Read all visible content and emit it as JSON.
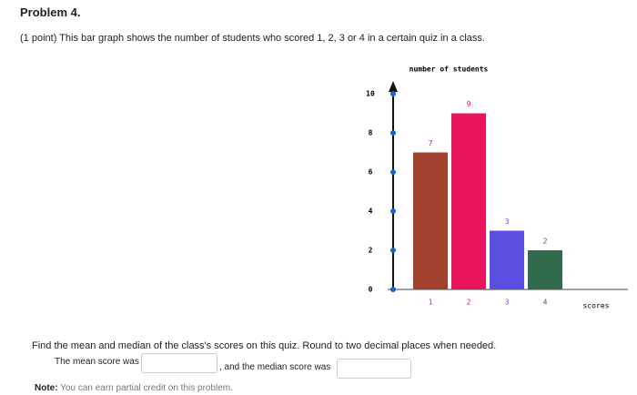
{
  "problem": {
    "title": "Problem 4.",
    "prompt": "(1 point) This bar graph shows the number of students who scored 1, 2, 3 or 4 in a certain quiz in a class.",
    "question": "Find the mean and median of the class's scores on this quiz. Round to two decimal places when needed.",
    "mean_label": "The mean score was",
    "median_label": ", and the median score was",
    "note_label": "Note:",
    "note_text": "You can earn partial credit on this problem."
  },
  "chart_data": {
    "type": "bar",
    "y_label": "number of students",
    "x_label": "scores",
    "categories": [
      "1",
      "2",
      "3",
      "4"
    ],
    "values": [
      7,
      9,
      3,
      2
    ],
    "colors": [
      "#a3412f",
      "#e8175d",
      "#5a4fe0",
      "#2f6b4c"
    ],
    "ylim": [
      0,
      10
    ],
    "yticks": [
      0,
      2,
      4,
      6,
      8,
      10
    ]
  }
}
